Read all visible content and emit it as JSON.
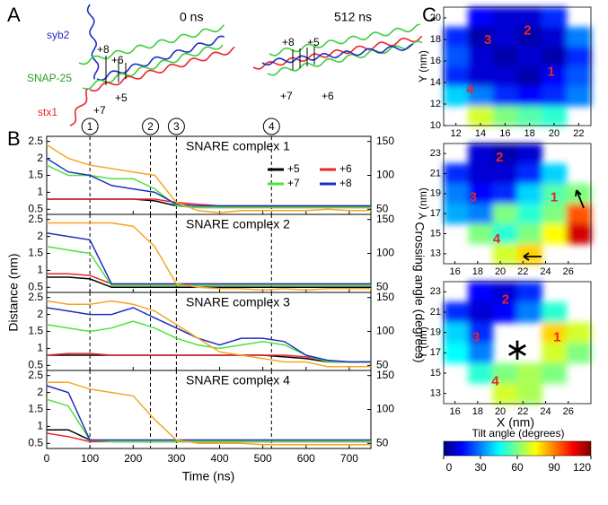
{
  "panels": {
    "a": {
      "letter": "A",
      "times": [
        "0 ns",
        "512 ns"
      ],
      "helices": [
        "syb2",
        "SNAP-25",
        "stx1"
      ],
      "layers_0": [
        "+8",
        "+6",
        "+5",
        "+7"
      ],
      "layers_512": [
        "+8",
        "+5",
        "+7",
        "+6"
      ]
    },
    "b": {
      "letter": "B",
      "xlabel": "Time (ns)",
      "ylabel": "Distance (nm)",
      "y2label": "Crossing angle (degrees)",
      "xlim": [
        0,
        750
      ],
      "xticks": [
        0,
        100,
        200,
        300,
        400,
        500,
        600,
        700
      ],
      "ylim": [
        0.35,
        2.65
      ],
      "yticks": [
        0.5,
        1,
        1.5,
        2,
        2.5
      ],
      "y2lim": [
        42.5,
        157.5
      ],
      "y2ticks": [
        50,
        100,
        150
      ],
      "events": [
        {
          "x": 100,
          "label": "1"
        },
        {
          "x": 240,
          "label": "2"
        },
        {
          "x": 300,
          "label": "3"
        },
        {
          "x": 520,
          "label": "4"
        }
      ]
    },
    "c": {
      "letter": "C",
      "xlabel": "X (nm)",
      "ylabel": "Y (nm)",
      "colorbar": {
        "title": "Tilt angle (degrees)",
        "lim": [
          0,
          120
        ],
        "ticks": [
          0,
          30,
          60,
          90,
          120
        ],
        "colorscale": [
          "#00007f",
          "#0000ff",
          "#007fff",
          "#00ffff",
          "#7fff7f",
          "#ffff00",
          "#ff7f00",
          "#ff0000",
          "#7f0000"
        ]
      }
    }
  },
  "chart_data": [
    {
      "type": "line",
      "title": "SNARE complex 1",
      "legend": "upper right",
      "x": [
        0,
        50,
        100,
        150,
        200,
        250,
        300,
        350,
        400,
        450,
        500,
        550,
        600,
        650,
        700,
        750
      ],
      "series": [
        {
          "name": "+5",
          "color": "#000000",
          "values": [
            0.8,
            0.8,
            0.8,
            0.8,
            0.8,
            0.75,
            0.6,
            0.55,
            0.55,
            0.55,
            0.55,
            0.55,
            0.55,
            0.55,
            0.55,
            0.55
          ]
        },
        {
          "name": "+6",
          "color": "#e8262a",
          "values": [
            0.8,
            0.8,
            0.8,
            0.8,
            0.8,
            0.8,
            0.7,
            0.65,
            0.6,
            0.6,
            0.6,
            0.6,
            0.6,
            0.6,
            0.6,
            0.6
          ]
        },
        {
          "name": "+7",
          "color": "#4de33a",
          "values": [
            1.8,
            1.5,
            1.5,
            1.4,
            1.4,
            1.1,
            0.6,
            0.55,
            0.55,
            0.55,
            0.55,
            0.55,
            0.55,
            0.55,
            0.55,
            0.55
          ]
        },
        {
          "name": "+8",
          "color": "#1f2fbf",
          "values": [
            2.0,
            1.6,
            1.5,
            1.2,
            1.1,
            1.0,
            0.65,
            0.6,
            0.6,
            0.6,
            0.6,
            0.6,
            0.6,
            0.6,
            0.6,
            0.6
          ]
        },
        {
          "color": "#f5a623",
          "axis": "y2",
          "values": [
            145,
            125,
            115,
            110,
            105,
            100,
            60,
            48,
            45,
            48,
            48,
            48,
            48,
            50,
            48,
            48
          ]
        }
      ]
    },
    {
      "type": "line",
      "title": "SNARE complex 2",
      "x": [
        0,
        50,
        100,
        150,
        200,
        250,
        300,
        350,
        400,
        450,
        500,
        550,
        600,
        650,
        700,
        750
      ],
      "series": [
        {
          "name": "+5",
          "color": "#000000",
          "values": [
            0.8,
            0.8,
            0.75,
            0.5,
            0.5,
            0.5,
            0.5,
            0.5,
            0.5,
            0.5,
            0.5,
            0.5,
            0.5,
            0.5,
            0.5,
            0.5
          ]
        },
        {
          "name": "+6",
          "color": "#e8262a",
          "values": [
            0.9,
            0.9,
            0.85,
            0.6,
            0.6,
            0.6,
            0.6,
            0.6,
            0.6,
            0.6,
            0.6,
            0.6,
            0.6,
            0.6,
            0.6,
            0.6
          ]
        },
        {
          "name": "+7",
          "color": "#4de33a",
          "values": [
            1.7,
            1.6,
            1.5,
            0.55,
            0.55,
            0.55,
            0.55,
            0.55,
            0.55,
            0.55,
            0.55,
            0.55,
            0.55,
            0.55,
            0.55,
            0.55
          ]
        },
        {
          "name": "+8",
          "color": "#1f2fbf",
          "values": [
            2.1,
            2.0,
            1.9,
            0.6,
            0.6,
            0.6,
            0.6,
            0.6,
            0.6,
            0.6,
            0.6,
            0.6,
            0.6,
            0.6,
            0.6,
            0.6
          ]
        },
        {
          "color": "#f5a623",
          "axis": "y2",
          "values": [
            145,
            145,
            145,
            145,
            140,
            110,
            55,
            50,
            48,
            48,
            46,
            48,
            46,
            48,
            48,
            48
          ]
        }
      ]
    },
    {
      "type": "line",
      "title": "SNARE complex 3",
      "x": [
        0,
        50,
        100,
        150,
        200,
        250,
        300,
        350,
        400,
        450,
        500,
        550,
        600,
        650,
        700,
        750
      ],
      "series": [
        {
          "name": "+5",
          "color": "#000000",
          "values": [
            0.8,
            0.8,
            0.8,
            0.8,
            0.8,
            0.8,
            0.8,
            0.8,
            0.8,
            0.8,
            0.8,
            0.75,
            0.7,
            0.6,
            0.6,
            0.6
          ]
        },
        {
          "name": "+6",
          "color": "#e8262a",
          "values": [
            0.8,
            0.85,
            0.85,
            0.8,
            0.8,
            0.8,
            0.8,
            0.8,
            0.8,
            0.8,
            0.8,
            0.8,
            0.75,
            0.65,
            0.6,
            0.6
          ]
        },
        {
          "name": "+7",
          "color": "#4de33a",
          "values": [
            1.7,
            1.6,
            1.5,
            1.6,
            1.8,
            1.6,
            1.3,
            1.1,
            1.0,
            1.1,
            1.2,
            1.1,
            0.8,
            0.6,
            0.6,
            0.6
          ]
        },
        {
          "name": "+8",
          "color": "#1f2fbf",
          "values": [
            2.2,
            2.1,
            2.0,
            2.0,
            2.2,
            1.9,
            1.6,
            1.3,
            1.1,
            1.3,
            1.3,
            1.2,
            0.8,
            0.65,
            0.6,
            0.6
          ]
        },
        {
          "color": "#f5a623",
          "axis": "y2",
          "values": [
            145,
            140,
            140,
            145,
            140,
            130,
            110,
            90,
            70,
            65,
            60,
            55,
            55,
            48,
            48,
            48
          ]
        }
      ]
    },
    {
      "type": "line",
      "title": "SNARE complex 4",
      "x": [
        0,
        50,
        100,
        150,
        200,
        250,
        300,
        350,
        400,
        450,
        500,
        550,
        600,
        650,
        700,
        750
      ],
      "series": [
        {
          "name": "+5",
          "color": "#000000",
          "values": [
            0.9,
            0.9,
            0.6,
            0.55,
            0.55,
            0.55,
            0.55,
            0.55,
            0.55,
            0.55,
            0.55,
            0.55,
            0.55,
            0.55,
            0.55,
            0.55
          ]
        },
        {
          "name": "+6",
          "color": "#e8262a",
          "values": [
            0.8,
            0.7,
            0.55,
            0.55,
            0.55,
            0.55,
            0.55,
            0.55,
            0.55,
            0.55,
            0.55,
            0.55,
            0.55,
            0.55,
            0.55,
            0.55
          ]
        },
        {
          "name": "+7",
          "color": "#4de33a",
          "values": [
            1.8,
            1.6,
            0.6,
            0.55,
            0.55,
            0.55,
            0.55,
            0.55,
            0.55,
            0.55,
            0.55,
            0.55,
            0.55,
            0.55,
            0.55,
            0.55
          ]
        },
        {
          "name": "+8",
          "color": "#1f2fbf",
          "values": [
            2.2,
            2.0,
            0.6,
            0.6,
            0.6,
            0.6,
            0.6,
            0.6,
            0.6,
            0.6,
            0.6,
            0.6,
            0.6,
            0.6,
            0.6,
            0.6
          ]
        },
        {
          "color": "#f5a623",
          "axis": "y2",
          "values": [
            140,
            140,
            130,
            125,
            120,
            85,
            55,
            50,
            50,
            50,
            48,
            48,
            48,
            48,
            48,
            48
          ]
        }
      ]
    },
    {
      "type": "heatmap",
      "xlim": [
        11,
        23
      ],
      "ylim": [
        10,
        21
      ],
      "xticks": [
        12,
        14,
        16,
        18,
        20,
        22
      ],
      "yticks": [
        10,
        12,
        14,
        16,
        18,
        20
      ],
      "labels": [
        "3",
        "2",
        "1",
        "4"
      ],
      "z": [
        [
          null,
          15,
          10,
          10,
          20,
          null
        ],
        [
          20,
          5,
          10,
          5,
          10,
          30
        ],
        [
          25,
          10,
          5,
          10,
          5,
          20
        ],
        [
          20,
          10,
          10,
          5,
          15,
          25
        ],
        [
          40,
          30,
          20,
          15,
          20,
          30
        ],
        [
          null,
          70,
          60,
          55,
          50,
          null
        ]
      ]
    },
    {
      "type": "heatmap",
      "xlim": [
        15,
        28
      ],
      "ylim": [
        12,
        24
      ],
      "xticks": [
        16,
        18,
        20,
        22,
        24,
        26
      ],
      "yticks": [
        13,
        15,
        17,
        19,
        21,
        23
      ],
      "labels": [
        "2",
        "3",
        "1",
        "4"
      ],
      "z": [
        [
          null,
          10,
          5,
          10,
          null,
          null
        ],
        [
          20,
          10,
          10,
          20,
          40,
          null
        ],
        [
          30,
          15,
          20,
          40,
          55,
          60
        ],
        [
          35,
          30,
          60,
          50,
          60,
          95
        ],
        [
          null,
          60,
          50,
          60,
          75,
          110
        ],
        [
          null,
          null,
          70,
          80,
          null,
          null
        ]
      ]
    },
    {
      "type": "heatmap",
      "xlim": [
        15,
        28
      ],
      "ylim": [
        12,
        24
      ],
      "xticks": [
        16,
        18,
        20,
        22,
        24,
        26
      ],
      "yticks": [
        13,
        15,
        17,
        19,
        21,
        23
      ],
      "labels": [
        "2",
        "3",
        "1",
        "4"
      ],
      "z": [
        [
          null,
          15,
          10,
          20,
          null,
          null
        ],
        [
          20,
          10,
          15,
          30,
          50,
          null
        ],
        [
          40,
          20,
          null,
          null,
          80,
          70
        ],
        [
          45,
          30,
          null,
          null,
          70,
          60
        ],
        [
          null,
          50,
          60,
          65,
          60,
          null
        ],
        [
          null,
          null,
          70,
          65,
          null,
          null
        ]
      ]
    }
  ]
}
